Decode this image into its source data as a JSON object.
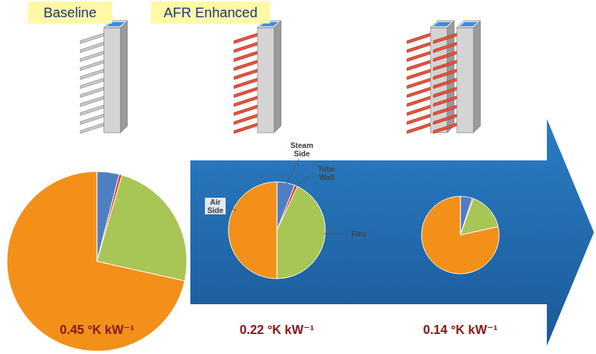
{
  "headers": [
    "Baseline",
    "AFR Enhanced"
  ],
  "chart_data": [
    {
      "type": "pie",
      "values": [
        4,
        0.5,
        24,
        71.5
      ],
      "colors": [
        "#4f7fc0",
        "#d9402a",
        "#a8c655",
        "#f39019"
      ],
      "annotations": [
        "0.45 °K kW⁻¹"
      ]
    },
    {
      "type": "pie",
      "categories": [
        "Steam Side",
        "Tube Wall",
        "Fins",
        "Air Side"
      ],
      "values": [
        6,
        1,
        43,
        50
      ],
      "colors": [
        "#4f7fc0",
        "#d9402a",
        "#a8c655",
        "#f39019"
      ],
      "annotations": [
        "0.22 °K kW⁻¹"
      ]
    },
    {
      "type": "pie",
      "values": [
        5,
        0.5,
        16,
        78.5
      ],
      "colors": [
        "#4f7fc0",
        "#d9402a",
        "#a8c655",
        "#f39019"
      ],
      "annotations": [
        "0.14 °K kW⁻¹"
      ]
    }
  ]
}
